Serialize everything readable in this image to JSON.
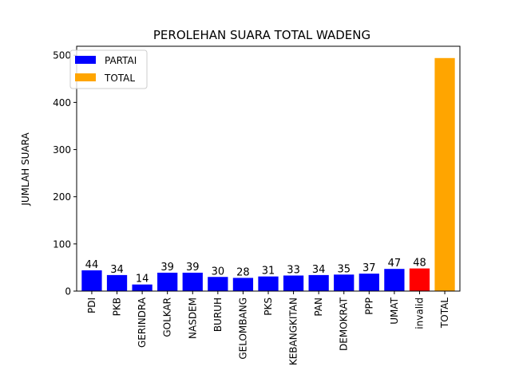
{
  "chart_data": {
    "type": "bar",
    "title": "PEROLEHAN SUARA TOTAL WADENG",
    "xlabel": "",
    "ylabel": "JUMLAH SUARA",
    "ylim": [
      0,
      519
    ],
    "yticks": [
      0,
      100,
      200,
      300,
      400,
      500
    ],
    "categories": [
      "PDI",
      "PKB",
      "GERINDRA",
      "GOLKAR",
      "NASDEM",
      "BURUH",
      "GELOMBANG",
      "PKS",
      "KEBANGKITAN",
      "PAN",
      "DEMOKRAT",
      "PPP",
      "UMAT",
      "invalid",
      "TOTAL"
    ],
    "values": [
      44,
      34,
      14,
      39,
      39,
      30,
      28,
      31,
      33,
      34,
      35,
      37,
      47,
      48,
      494
    ],
    "value_labels": [
      "44",
      "34",
      "14",
      "39",
      "39",
      "30",
      "28",
      "31",
      "33",
      "34",
      "35",
      "37",
      "47",
      "48",
      ""
    ],
    "bar_colors": [
      "#0000ff",
      "#0000ff",
      "#0000ff",
      "#0000ff",
      "#0000ff",
      "#0000ff",
      "#0000ff",
      "#0000ff",
      "#0000ff",
      "#0000ff",
      "#0000ff",
      "#0000ff",
      "#0000ff",
      "#ff0000",
      "#ffa500"
    ],
    "legend": {
      "placement": "top-left",
      "entries": [
        {
          "label": "PARTAI",
          "color": "#0000ff"
        },
        {
          "label": "TOTAL",
          "color": "#ffa500"
        }
      ]
    },
    "grid": false
  }
}
